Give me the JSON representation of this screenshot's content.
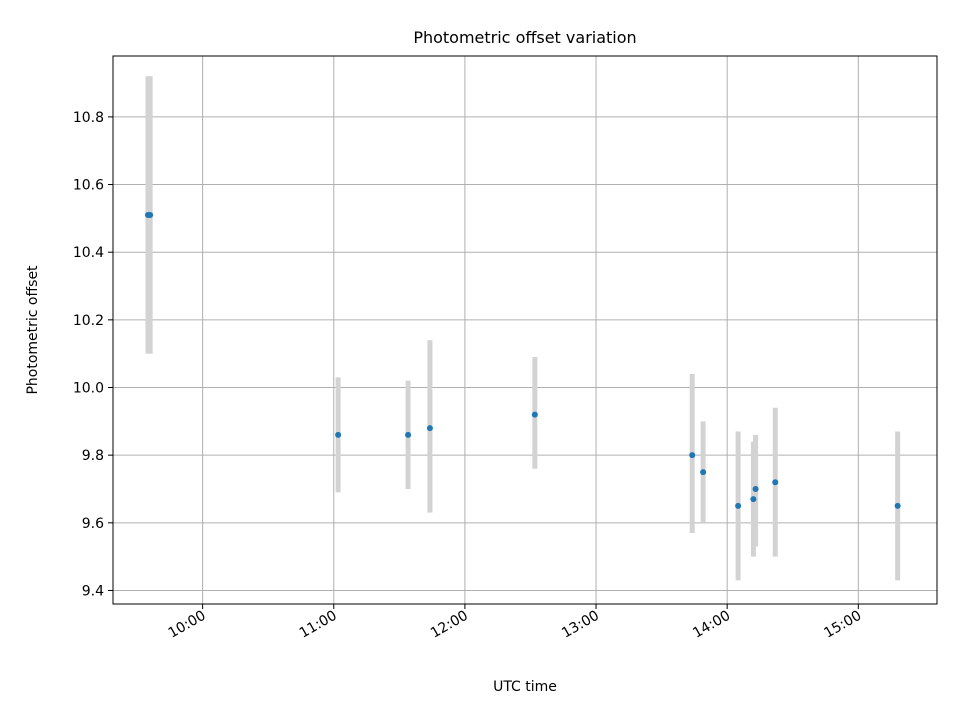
{
  "chart_data": {
    "type": "scatter",
    "title": "Photometric offset variation",
    "xlabel": "UTC time",
    "ylabel": "Photometric offset",
    "x_ticks": [
      "10:00",
      "11:00",
      "12:00",
      "13:00",
      "14:00",
      "15:00"
    ],
    "y_ticks": [
      "9.4",
      "9.6",
      "9.8",
      "10.0",
      "10.2",
      "10.4",
      "10.6",
      "10.8"
    ],
    "xlim": [
      "09:19",
      "15:36"
    ],
    "ylim": [
      9.36,
      10.98
    ],
    "grid": true,
    "marker_color": "#1f77b4",
    "errorbar_color": "#d3d3d3",
    "points": [
      {
        "x": "09:35",
        "y": 10.51,
        "ylow": 10.1,
        "yhigh": 10.92
      },
      {
        "x": "09:36",
        "y": 10.51,
        "ylow": 10.1,
        "yhigh": 10.92
      },
      {
        "x": "11:02",
        "y": 9.86,
        "ylow": 9.69,
        "yhigh": 10.03
      },
      {
        "x": "11:34",
        "y": 9.86,
        "ylow": 9.7,
        "yhigh": 10.02
      },
      {
        "x": "11:44",
        "y": 9.88,
        "ylow": 9.63,
        "yhigh": 10.14
      },
      {
        "x": "12:32",
        "y": 9.92,
        "ylow": 9.76,
        "yhigh": 10.09
      },
      {
        "x": "13:44",
        "y": 9.8,
        "ylow": 9.57,
        "yhigh": 10.04
      },
      {
        "x": "13:49",
        "y": 9.75,
        "ylow": 9.6,
        "yhigh": 9.9
      },
      {
        "x": "14:05",
        "y": 9.65,
        "ylow": 9.43,
        "yhigh": 9.87
      },
      {
        "x": "14:12",
        "y": 9.67,
        "ylow": 9.5,
        "yhigh": 9.84
      },
      {
        "x": "14:13",
        "y": 9.7,
        "ylow": 9.53,
        "yhigh": 9.86
      },
      {
        "x": "14:22",
        "y": 9.72,
        "ylow": 9.5,
        "yhigh": 9.94
      },
      {
        "x": "15:18",
        "y": 9.65,
        "ylow": 9.43,
        "yhigh": 9.87
      }
    ]
  }
}
